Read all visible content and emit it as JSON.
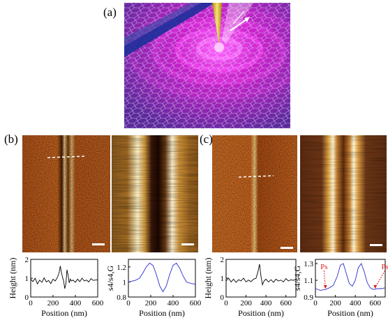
{
  "figure": {
    "panels": {
      "a": {
        "label": "(a)"
      },
      "b": {
        "label": "(b)"
      },
      "c": {
        "label": "(c)"
      }
    }
  },
  "chart_data": [
    {
      "type": "line",
      "panel": "b-left",
      "xlabel": "Position (nm)",
      "ylabel": "Height (nm)",
      "xticks": [
        "0",
        "200",
        "400",
        "600"
      ],
      "yticks": [
        "0",
        "1",
        "2"
      ],
      "xlim": [
        0,
        600
      ],
      "ylim": [
        0,
        2
      ],
      "series": [
        {
          "x": [
            0,
            20,
            40,
            60,
            80,
            100,
            120,
            140,
            160,
            180,
            200,
            220,
            240,
            255,
            265,
            275,
            285,
            295,
            305,
            315,
            325,
            335,
            345,
            355,
            365,
            380,
            400,
            420,
            440,
            460,
            480,
            500,
            520,
            540,
            560,
            580,
            600
          ],
          "y": [
            0.95,
            0.82,
            1.0,
            0.7,
            0.9,
            0.78,
            1.02,
            0.8,
            0.88,
            0.72,
            0.95,
            0.85,
            1.05,
            1.3,
            1.65,
            1.3,
            1.05,
            0.85,
            0.45,
            0.7,
            1.45,
            1.15,
            0.75,
            0.95,
            0.85,
            0.9,
            0.78,
            0.95,
            0.82,
            1.0,
            0.85,
            0.9,
            0.8,
            0.98,
            0.88,
            0.9,
            0.92
          ]
        }
      ]
    },
    {
      "type": "line",
      "panel": "b-right",
      "xlabel": "Position (nm)",
      "ylabel": "s4/s4,G",
      "xticks": [
        "0",
        "200",
        "400",
        "600"
      ],
      "yticks": [
        "0.8",
        "1",
        "1.2"
      ],
      "xlim": [
        0,
        600
      ],
      "ylim": [
        0.8,
        1.3
      ],
      "series": [
        {
          "color": "#2b2bd0",
          "x": [
            0,
            60,
            100,
            130,
            160,
            190,
            220,
            250,
            280,
            310,
            340,
            370,
            400,
            430,
            460,
            490,
            520,
            560,
            600
          ],
          "y": [
            1.0,
            1.02,
            1.05,
            1.12,
            1.2,
            1.25,
            1.22,
            1.1,
            0.95,
            0.87,
            0.95,
            1.1,
            1.22,
            1.25,
            1.18,
            1.08,
            1.0,
            0.98,
            0.97
          ]
        }
      ]
    },
    {
      "type": "line",
      "panel": "c-left",
      "xlabel": "Position (nm)",
      "ylabel": "Height (nm)",
      "xticks": [
        "0",
        "200",
        "400",
        "600"
      ],
      "yticks": [
        "0",
        "1",
        "2"
      ],
      "xlim": [
        0,
        700
      ],
      "ylim": [
        0,
        2
      ],
      "series": [
        {
          "x": [
            0,
            25,
            50,
            75,
            100,
            125,
            150,
            175,
            200,
            225,
            250,
            275,
            300,
            320,
            335,
            350,
            365,
            380,
            400,
            425,
            450,
            475,
            500,
            525,
            550,
            575,
            600,
            625,
            650,
            675,
            700
          ],
          "y": [
            0.85,
            1.0,
            0.8,
            0.95,
            0.78,
            0.92,
            0.85,
            1.0,
            0.8,
            0.9,
            0.82,
            0.95,
            1.0,
            1.35,
            1.75,
            1.1,
            0.65,
            0.85,
            0.95,
            0.8,
            0.92,
            0.78,
            0.95,
            0.85,
            0.9,
            0.8,
            0.98,
            0.85,
            0.92,
            0.88,
            0.95
          ]
        }
      ]
    },
    {
      "type": "line",
      "panel": "c-right",
      "xlabel": "Position (nm)",
      "ylabel": "s4/s4,G",
      "xticks": [
        "0",
        "200",
        "400",
        "600"
      ],
      "yticks": [
        "0.9",
        "1.1",
        "1.3"
      ],
      "xlim": [
        0,
        700
      ],
      "ylim": [
        0.9,
        1.35
      ],
      "annotations": [
        {
          "text": "Ps",
          "x": 100,
          "y": 1.0
        },
        {
          "text": "Ps",
          "x": 600,
          "y": 1.0
        }
      ],
      "series": [
        {
          "color": "#2b2bd0",
          "x": [
            0,
            50,
            100,
            140,
            180,
            220,
            250,
            280,
            310,
            340,
            370,
            400,
            430,
            460,
            490,
            520,
            550,
            580,
            620,
            660,
            700
          ],
          "y": [
            1.0,
            0.98,
            0.99,
            1.01,
            1.04,
            1.15,
            1.28,
            1.3,
            1.18,
            1.06,
            1.03,
            1.1,
            1.25,
            1.3,
            1.2,
            1.07,
            1.01,
            0.99,
            1.0,
            1.0,
            1.01
          ]
        }
      ]
    }
  ]
}
